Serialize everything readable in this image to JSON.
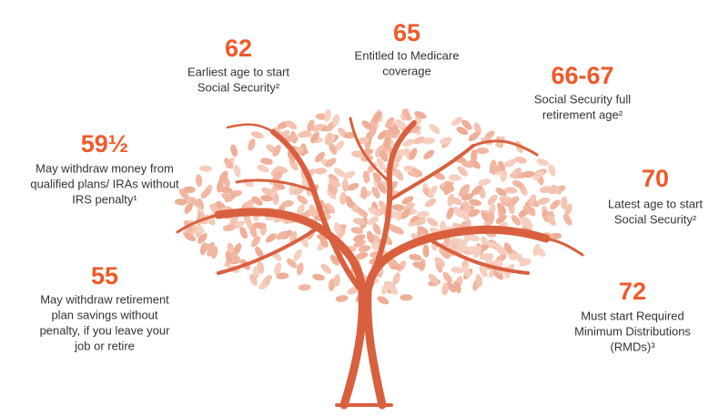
{
  "items": [
    {
      "age": "62",
      "lines": [
        "Earliest age to start",
        "Social Security²"
      ]
    },
    {
      "age": "65",
      "lines": [
        "Entitled to Medicare",
        "coverage"
      ]
    },
    {
      "age": "66-67",
      "lines": [
        "Social Security full",
        "retirement age²"
      ]
    },
    {
      "age": "59½",
      "lines": [
        "May withdraw money from",
        "qualified plans/ IRAs without",
        "IRS penalty¹"
      ]
    },
    {
      "age": "70",
      "lines": [
        "Latest age to start",
        "Social Security²"
      ]
    },
    {
      "age": "55",
      "lines": [
        "May withdraw retirement",
        "plan savings without",
        "penalty, if you leave your",
        "job or retire"
      ]
    },
    {
      "age": "72",
      "lines": [
        "Must start Required",
        "Minimum Distributions",
        "(RMDs)³"
      ]
    }
  ]
}
